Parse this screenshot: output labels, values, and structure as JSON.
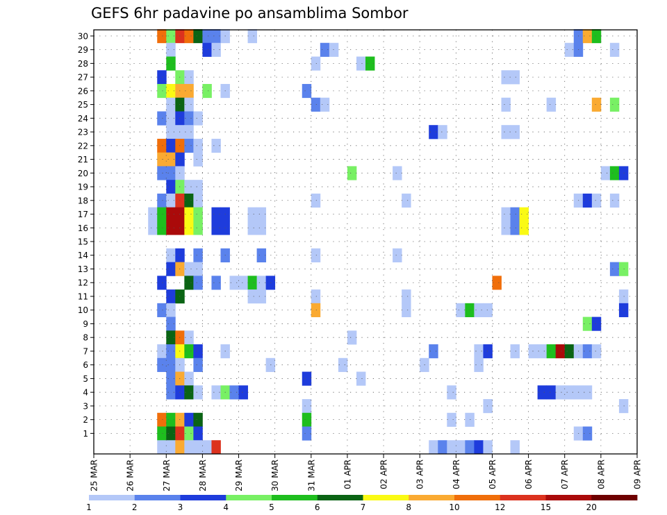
{
  "chart_data": {
    "type": "heatmap",
    "title": "GEFS 6hr padavine po ansamblima Sombor",
    "x_start_day": 25,
    "x_end_day": 40,
    "steps_per_day": 4,
    "x_ticks": [
      {
        "day": 25,
        "label": "25 MAR"
      },
      {
        "day": 26,
        "label": "26 MAR"
      },
      {
        "day": 27,
        "label": "27 MAR"
      },
      {
        "day": 28,
        "label": "28 MAR"
      },
      {
        "day": 29,
        "label": "29 MAR"
      },
      {
        "day": 30,
        "label": "30 MAR"
      },
      {
        "day": 31,
        "label": "31 MAR"
      },
      {
        "day": 32,
        "label": "01 APR"
      },
      {
        "day": 33,
        "label": "02 APR"
      },
      {
        "day": 34,
        "label": "03 APR"
      },
      {
        "day": 35,
        "label": "04 APR"
      },
      {
        "day": 36,
        "label": "05 APR"
      },
      {
        "day": 37,
        "label": "06 APR"
      },
      {
        "day": 38,
        "label": "07 APR"
      },
      {
        "day": 39,
        "label": "08 APR"
      },
      {
        "day": 40,
        "label": "09 APR"
      }
    ],
    "y_range": [
      0,
      30
    ],
    "y_ticks": [
      "1",
      "2",
      "3",
      "4",
      "5",
      "6",
      "7",
      "8",
      "9",
      "10",
      "11",
      "12",
      "13",
      "14",
      "15",
      "16",
      "17",
      "18",
      "19",
      "20",
      "21",
      "22",
      "23",
      "24",
      "25",
      "26",
      "27",
      "28",
      "29",
      "30"
    ],
    "grid": "dotted",
    "legend": {
      "placement": "bottom",
      "bins": [
        {
          "lo": 1,
          "hi": 2,
          "color": "#b4c8f8"
        },
        {
          "lo": 2,
          "hi": 3,
          "color": "#5a82ec"
        },
        {
          "lo": 3,
          "hi": 4,
          "color": "#1e3cdc"
        },
        {
          "lo": 4,
          "hi": 5,
          "color": "#78f064"
        },
        {
          "lo": 5,
          "hi": 6,
          "color": "#1ebe1e"
        },
        {
          "lo": 6,
          "hi": 7,
          "color": "#0a6414"
        },
        {
          "lo": 7,
          "hi": 8,
          "color": "#fafa14"
        },
        {
          "lo": 8,
          "hi": 10,
          "color": "#faaa32"
        },
        {
          "lo": 10,
          "hi": 12,
          "color": "#f06e0a"
        },
        {
          "lo": 12,
          "hi": 15,
          "color": "#dc321e"
        },
        {
          "lo": 15,
          "hi": 20,
          "color": "#aa0a0a"
        },
        {
          "lo": 20,
          "hi": null,
          "color": "#6e0000"
        }
      ],
      "labels": [
        "1",
        "2",
        "3",
        "4",
        "5",
        "6",
        "7",
        "8",
        "10",
        "12",
        "15",
        "20"
      ]
    },
    "cells_note": "each cell = [time_step_from_25MAR_00Z, ensemble_member (0 = control row), precip_mm]",
    "cells": [
      [
        7,
        30,
        10
      ],
      [
        8,
        30,
        4
      ],
      [
        9,
        30,
        12
      ],
      [
        10,
        30,
        10
      ],
      [
        11,
        30,
        6
      ],
      [
        12,
        30,
        2
      ],
      [
        13,
        30,
        2
      ],
      [
        14,
        30,
        1
      ],
      [
        17,
        30,
        1
      ],
      [
        53,
        30,
        2
      ],
      [
        54,
        30,
        8
      ],
      [
        55,
        30,
        5
      ],
      [
        8,
        29,
        1
      ],
      [
        12,
        29,
        3
      ],
      [
        13,
        29,
        1
      ],
      [
        25,
        29,
        2
      ],
      [
        26,
        29,
        1
      ],
      [
        52,
        29,
        1
      ],
      [
        53,
        29,
        2
      ],
      [
        57,
        29,
        1
      ],
      [
        8,
        28,
        5
      ],
      [
        24,
        28,
        1
      ],
      [
        29,
        28,
        1
      ],
      [
        30,
        28,
        5
      ],
      [
        7,
        27,
        3
      ],
      [
        9,
        27,
        4
      ],
      [
        10,
        27,
        1
      ],
      [
        45,
        27,
        1
      ],
      [
        46,
        27,
        1
      ],
      [
        7,
        26,
        4
      ],
      [
        8,
        26,
        7
      ],
      [
        9,
        26,
        8
      ],
      [
        10,
        26,
        8
      ],
      [
        12,
        26,
        4
      ],
      [
        14,
        26,
        1
      ],
      [
        23,
        26,
        2
      ],
      [
        8,
        25,
        1
      ],
      [
        9,
        25,
        6
      ],
      [
        10,
        25,
        1
      ],
      [
        24,
        25,
        2
      ],
      [
        25,
        25,
        1
      ],
      [
        45,
        25,
        1
      ],
      [
        50,
        25,
        1
      ],
      [
        55,
        25,
        8
      ],
      [
        57,
        25,
        4
      ],
      [
        7,
        24,
        2
      ],
      [
        8,
        24,
        1
      ],
      [
        9,
        24,
        3
      ],
      [
        10,
        24,
        2
      ],
      [
        11,
        24,
        1
      ],
      [
        8,
        23,
        1
      ],
      [
        9,
        23,
        1
      ],
      [
        10,
        23,
        1
      ],
      [
        37,
        23,
        3
      ],
      [
        38,
        23,
        1
      ],
      [
        45,
        23,
        1
      ],
      [
        46,
        23,
        1
      ],
      [
        7,
        22,
        10
      ],
      [
        8,
        22,
        3
      ],
      [
        9,
        22,
        10
      ],
      [
        10,
        22,
        2
      ],
      [
        11,
        22,
        1
      ],
      [
        13,
        22,
        1
      ],
      [
        7,
        21,
        8
      ],
      [
        8,
        21,
        8
      ],
      [
        9,
        21,
        3
      ],
      [
        11,
        21,
        1
      ],
      [
        7,
        20,
        2
      ],
      [
        8,
        20,
        2
      ],
      [
        9,
        20,
        1
      ],
      [
        28,
        20,
        4
      ],
      [
        33,
        20,
        1
      ],
      [
        56,
        20,
        1
      ],
      [
        57,
        20,
        5
      ],
      [
        58,
        20,
        3
      ],
      [
        8,
        19,
        3
      ],
      [
        9,
        19,
        4
      ],
      [
        10,
        19,
        1
      ],
      [
        11,
        19,
        1
      ],
      [
        7,
        18,
        2
      ],
      [
        8,
        18,
        1
      ],
      [
        9,
        18,
        12
      ],
      [
        10,
        18,
        6
      ],
      [
        11,
        18,
        1
      ],
      [
        24,
        18,
        1
      ],
      [
        34,
        18,
        1
      ],
      [
        53,
        18,
        1
      ],
      [
        54,
        18,
        3
      ],
      [
        55,
        18,
        1
      ],
      [
        57,
        18,
        1
      ],
      [
        6,
        17,
        1
      ],
      [
        7,
        17,
        5
      ],
      [
        8,
        17,
        15
      ],
      [
        9,
        17,
        15
      ],
      [
        10,
        17,
        7
      ],
      [
        11,
        17,
        4
      ],
      [
        13,
        17,
        3
      ],
      [
        14,
        17,
        3
      ],
      [
        17,
        17,
        1
      ],
      [
        18,
        17,
        1
      ],
      [
        45,
        17,
        1
      ],
      [
        46,
        17,
        2
      ],
      [
        47,
        17,
        7
      ],
      [
        6,
        16,
        1
      ],
      [
        7,
        16,
        5
      ],
      [
        8,
        16,
        15
      ],
      [
        9,
        16,
        15
      ],
      [
        10,
        16,
        7
      ],
      [
        11,
        16,
        4
      ],
      [
        13,
        16,
        3
      ],
      [
        14,
        16,
        3
      ],
      [
        17,
        16,
        1
      ],
      [
        18,
        16,
        1
      ],
      [
        45,
        16,
        1
      ],
      [
        46,
        16,
        2
      ],
      [
        47,
        16,
        7
      ],
      [
        8,
        14,
        1
      ],
      [
        9,
        14,
        3
      ],
      [
        11,
        14,
        2
      ],
      [
        14,
        14,
        2
      ],
      [
        18,
        14,
        2
      ],
      [
        24,
        14,
        1
      ],
      [
        33,
        14,
        1
      ],
      [
        8,
        13,
        3
      ],
      [
        9,
        13,
        8
      ],
      [
        10,
        13,
        1
      ],
      [
        11,
        13,
        1
      ],
      [
        57,
        13,
        2
      ],
      [
        58,
        13,
        4
      ],
      [
        7,
        12,
        3
      ],
      [
        10,
        12,
        6
      ],
      [
        11,
        12,
        2
      ],
      [
        13,
        12,
        2
      ],
      [
        15,
        12,
        1
      ],
      [
        16,
        12,
        1
      ],
      [
        17,
        12,
        5
      ],
      [
        18,
        12,
        1
      ],
      [
        19,
        12,
        3
      ],
      [
        44,
        12,
        10
      ],
      [
        8,
        11,
        3
      ],
      [
        9,
        11,
        6
      ],
      [
        17,
        11,
        1
      ],
      [
        18,
        11,
        1
      ],
      [
        24,
        11,
        1
      ],
      [
        34,
        11,
        1
      ],
      [
        58,
        11,
        1
      ],
      [
        7,
        10,
        2
      ],
      [
        8,
        10,
        1
      ],
      [
        24,
        10,
        8
      ],
      [
        34,
        10,
        1
      ],
      [
        40,
        10,
        1
      ],
      [
        41,
        10,
        5
      ],
      [
        42,
        10,
        1
      ],
      [
        43,
        10,
        1
      ],
      [
        58,
        10,
        3
      ],
      [
        8,
        9,
        2
      ],
      [
        54,
        9,
        4
      ],
      [
        55,
        9,
        3
      ],
      [
        8,
        8,
        6
      ],
      [
        9,
        8,
        10
      ],
      [
        10,
        8,
        1
      ],
      [
        28,
        8,
        1
      ],
      [
        7,
        7,
        1
      ],
      [
        8,
        7,
        2
      ],
      [
        9,
        7,
        7
      ],
      [
        10,
        7,
        5
      ],
      [
        11,
        7,
        3
      ],
      [
        14,
        7,
        1
      ],
      [
        37,
        7,
        2
      ],
      [
        42,
        7,
        1
      ],
      [
        43,
        7,
        3
      ],
      [
        46,
        7,
        1
      ],
      [
        48,
        7,
        1
      ],
      [
        49,
        7,
        1
      ],
      [
        50,
        7,
        5
      ],
      [
        51,
        7,
        15
      ],
      [
        52,
        7,
        6
      ],
      [
        53,
        7,
        1
      ],
      [
        54,
        7,
        2
      ],
      [
        55,
        7,
        1
      ],
      [
        7,
        6,
        2
      ],
      [
        8,
        6,
        2
      ],
      [
        9,
        6,
        1
      ],
      [
        11,
        6,
        2
      ],
      [
        19,
        6,
        1
      ],
      [
        27,
        6,
        1
      ],
      [
        36,
        6,
        1
      ],
      [
        42,
        6,
        1
      ],
      [
        8,
        5,
        2
      ],
      [
        9,
        5,
        8
      ],
      [
        10,
        5,
        1
      ],
      [
        23,
        5,
        3
      ],
      [
        29,
        5,
        1
      ],
      [
        8,
        4,
        2
      ],
      [
        9,
        4,
        3
      ],
      [
        10,
        4,
        6
      ],
      [
        11,
        4,
        1
      ],
      [
        13,
        4,
        1
      ],
      [
        14,
        4,
        4
      ],
      [
        15,
        4,
        2
      ],
      [
        16,
        4,
        3
      ],
      [
        39,
        4,
        1
      ],
      [
        49,
        4,
        3
      ],
      [
        50,
        4,
        3
      ],
      [
        51,
        4,
        1
      ],
      [
        52,
        4,
        1
      ],
      [
        53,
        4,
        1
      ],
      [
        54,
        4,
        1
      ],
      [
        23,
        3,
        1
      ],
      [
        43,
        3,
        1
      ],
      [
        58,
        3,
        1
      ],
      [
        7,
        2,
        10
      ],
      [
        8,
        2,
        5
      ],
      [
        9,
        2,
        8
      ],
      [
        10,
        2,
        3
      ],
      [
        11,
        2,
        6
      ],
      [
        23,
        2,
        5
      ],
      [
        39,
        2,
        1
      ],
      [
        41,
        2,
        1
      ],
      [
        7,
        1,
        5
      ],
      [
        8,
        1,
        6
      ],
      [
        9,
        1,
        12
      ],
      [
        10,
        1,
        4
      ],
      [
        11,
        1,
        3
      ],
      [
        23,
        1,
        2
      ],
      [
        53,
        1,
        1
      ],
      [
        54,
        1,
        2
      ],
      [
        7,
        0,
        1
      ],
      [
        8,
        0,
        1
      ],
      [
        9,
        0,
        8
      ],
      [
        10,
        0,
        1
      ],
      [
        11,
        0,
        1
      ],
      [
        12,
        0,
        1
      ],
      [
        13,
        0,
        12
      ],
      [
        37,
        0,
        1
      ],
      [
        38,
        0,
        2
      ],
      [
        39,
        0,
        1
      ],
      [
        40,
        0,
        1
      ],
      [
        41,
        0,
        2
      ],
      [
        42,
        0,
        3
      ],
      [
        43,
        0,
        1
      ],
      [
        46,
        0,
        1
      ]
    ]
  }
}
